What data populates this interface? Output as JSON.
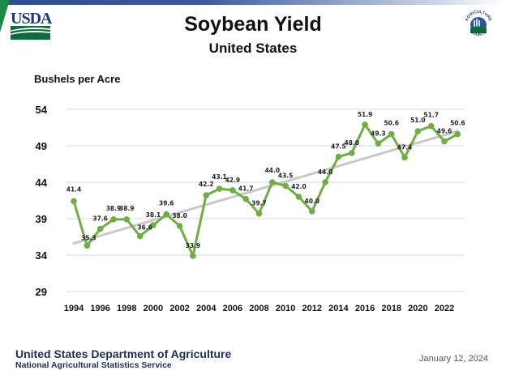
{
  "header": {
    "logo_left": "USDA",
    "logo_right_text_top": "AGRICULTURE",
    "logo_right_text_bottom": "COUNTS"
  },
  "footer": {
    "org": "United States Department of Agriculture",
    "agency": "National Agricultural Statistics Service",
    "date": "January 12, 2024"
  },
  "colors": {
    "series": "#70ad47",
    "trend": "#c8c8c8",
    "grid": "#d9d9d9",
    "brand_blue": "#1c2d5a",
    "brand_green": "#0f6b3b"
  },
  "chart_data": {
    "type": "line",
    "title": "Soybean Yield",
    "subtitle": "United States",
    "ylabel": "Bushels per Acre",
    "xlabel": "",
    "ylim": [
      29,
      54
    ],
    "yticks": [
      29,
      34,
      39,
      44,
      49,
      54
    ],
    "xlim": [
      1994,
      2023
    ],
    "xticks": [
      1994,
      1996,
      1998,
      2000,
      2002,
      2004,
      2006,
      2008,
      2010,
      2012,
      2014,
      2016,
      2018,
      2020,
      2022
    ],
    "grid": true,
    "x": [
      1994,
      1995,
      1996,
      1997,
      1998,
      1999,
      2000,
      2001,
      2002,
      2003,
      2004,
      2005,
      2006,
      2007,
      2008,
      2009,
      2010,
      2011,
      2012,
      2013,
      2014,
      2015,
      2016,
      2017,
      2018,
      2019,
      2020,
      2021,
      2022,
      2023
    ],
    "series": [
      {
        "name": "Yield",
        "values": [
          41.4,
          35.3,
          37.6,
          38.9,
          38.9,
          36.6,
          38.1,
          39.6,
          38.0,
          33.9,
          42.2,
          43.1,
          42.9,
          41.7,
          39.7,
          44.0,
          43.5,
          42.0,
          40.0,
          44.0,
          47.5,
          48.0,
          51.9,
          49.3,
          50.6,
          47.4,
          51.0,
          51.7,
          49.6,
          50.6
        ],
        "labels": [
          "41.4",
          "35.3",
          "37.6",
          "38.9",
          "38.9",
          "36.6",
          "38.1",
          "39.6",
          "38.0",
          "33.9",
          "42.2",
          "43.1",
          "42.9",
          "41.7",
          "39.7",
          "44.0",
          "43.5",
          "42.0",
          "40.0",
          "44.0",
          "47.5",
          "48.0",
          "51.9",
          "49.3",
          "50.6",
          "47.4",
          "51.0",
          "51.7",
          "49.6",
          "50.6"
        ]
      },
      {
        "name": "Trend",
        "type": "linear-trend",
        "x": [
          1994,
          2023
        ],
        "values": [
          35.6,
          51.0
        ]
      }
    ],
    "legend": "none"
  }
}
